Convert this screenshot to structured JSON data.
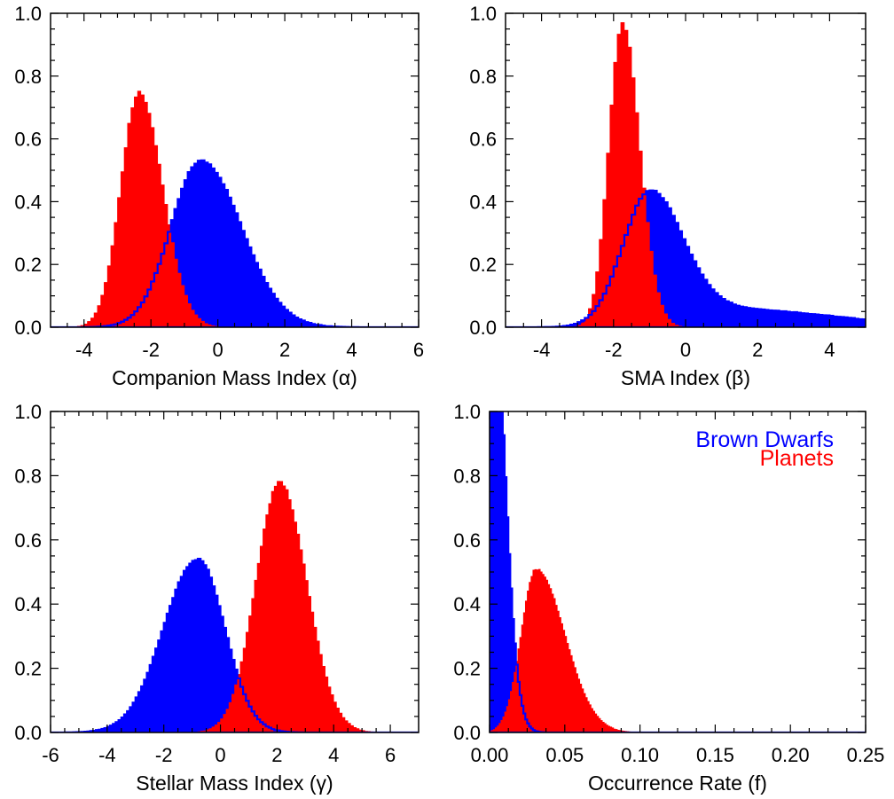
{
  "colors": {
    "brown_dwarfs": "#0000ff",
    "planets": "#ff0000"
  },
  "chart_data": [
    {
      "type": "histogram",
      "xlabel": "Companion Mass Index (α)",
      "xlim": [
        -5,
        6
      ],
      "ylim": [
        0,
        1.0
      ],
      "xticks": [
        -4,
        -2,
        0,
        2,
        4,
        6
      ],
      "yticks": [
        0.0,
        0.2,
        0.4,
        0.6,
        0.8,
        1.0
      ],
      "xticklabels": [
        "-4",
        "-2",
        "0",
        "2",
        "4",
        "6"
      ],
      "yticklabels": [
        "0.0",
        "0.2",
        "0.4",
        "0.6",
        "0.8",
        "1.0"
      ],
      "grid": false,
      "series": [
        {
          "name": "Brown Dwarfs",
          "color": "#0000ff",
          "bin_width": 0.1,
          "peaks": [
            {
              "amp": 0.53,
              "mu": -0.5,
              "sl": 0.9,
              "sr": 1.2
            }
          ]
        },
        {
          "name": "Planets",
          "color": "#ff0000",
          "bin_width": 0.1,
          "peaks": [
            {
              "amp": 0.75,
              "mu": -2.35,
              "sl": 0.55,
              "sr": 0.7
            }
          ]
        }
      ]
    },
    {
      "type": "histogram",
      "xlabel": "SMA Index (β)",
      "xlim": [
        -5,
        5
      ],
      "ylim": [
        0,
        1.0
      ],
      "xticks": [
        -4,
        -2,
        0,
        2,
        4
      ],
      "yticks": [
        0.0,
        0.2,
        0.4,
        0.6,
        0.8,
        1.0
      ],
      "xticklabels": [
        "-4",
        "-2",
        "0",
        "2",
        "4"
      ],
      "yticklabels": [
        "0.0",
        "0.2",
        "0.4",
        "0.6",
        "0.8",
        "1.0"
      ],
      "grid": false,
      "series": [
        {
          "name": "Brown Dwarfs",
          "color": "#0000ff",
          "bin_width": 0.1,
          "peaks": [
            {
              "amp": 0.41,
              "mu": -1.0,
              "sl": 0.75,
              "sr": 0.9
            },
            {
              "amp": 0.06,
              "mu": 1.0,
              "sl": 1.5,
              "sr": 3.0
            }
          ]
        },
        {
          "name": "Planets",
          "color": "#ff0000",
          "bin_width": 0.1,
          "peaks": [
            {
              "amp": 0.97,
              "mu": -1.75,
              "sl": 0.38,
              "sr": 0.48
            }
          ]
        }
      ]
    },
    {
      "type": "histogram",
      "xlabel": "Stellar Mass Index (γ)",
      "xlim": [
        -6,
        7
      ],
      "ylim": [
        0,
        1.0
      ],
      "xticks": [
        -6,
        -4,
        -2,
        0,
        2,
        4,
        6
      ],
      "yticks": [
        0.0,
        0.2,
        0.4,
        0.6,
        0.8,
        1.0
      ],
      "xticklabels": [
        "-6",
        "-4",
        "-2",
        "0",
        "2",
        "4",
        "6"
      ],
      "yticklabels": [
        "0.0",
        "0.2",
        "0.4",
        "0.6",
        "0.8",
        "1.0"
      ],
      "grid": false,
      "series": [
        {
          "name": "Brown Dwarfs",
          "color": "#0000ff",
          "bin_width": 0.1,
          "peaks": [
            {
              "amp": 0.54,
              "mu": -0.8,
              "sl": 1.2,
              "sr": 0.95
            }
          ]
        },
        {
          "name": "Planets",
          "color": "#ff0000",
          "bin_width": 0.1,
          "peaks": [
            {
              "amp": 0.78,
              "mu": 2.1,
              "sl": 0.85,
              "sr": 0.95
            }
          ]
        }
      ]
    },
    {
      "type": "histogram",
      "xlabel": "Occurrence Rate (f)",
      "xlim": [
        0,
        0.25
      ],
      "ylim": [
        0,
        1.0
      ],
      "xticks": [
        0.0,
        0.05,
        0.1,
        0.15,
        0.2,
        0.25
      ],
      "yticks": [
        0.0,
        0.2,
        0.4,
        0.6,
        0.8,
        1.0
      ],
      "xticklabels": [
        "0.00",
        "0.05",
        "0.10",
        "0.15",
        "0.20",
        "0.25"
      ],
      "yticklabels": [
        "0.0",
        "0.2",
        "0.4",
        "0.6",
        "0.8",
        "1.0"
      ],
      "grid": false,
      "legend": {
        "placement": "top-right",
        "entries": [
          "Brown Dwarfs",
          "Planets"
        ]
      },
      "series": [
        {
          "name": "Brown Dwarfs",
          "color": "#0000ff",
          "bin_width": 0.00125,
          "peaks": [
            {
              "amp": 1.6,
              "mu": 0.0,
              "sl": 0.004,
              "sr": 0.009
            }
          ]
        },
        {
          "name": "Planets",
          "color": "#ff0000",
          "bin_width": 0.00125,
          "peaks": [
            {
              "amp": 0.51,
              "mu": 0.031,
              "sl": 0.01,
              "sr": 0.019
            }
          ]
        }
      ]
    }
  ]
}
